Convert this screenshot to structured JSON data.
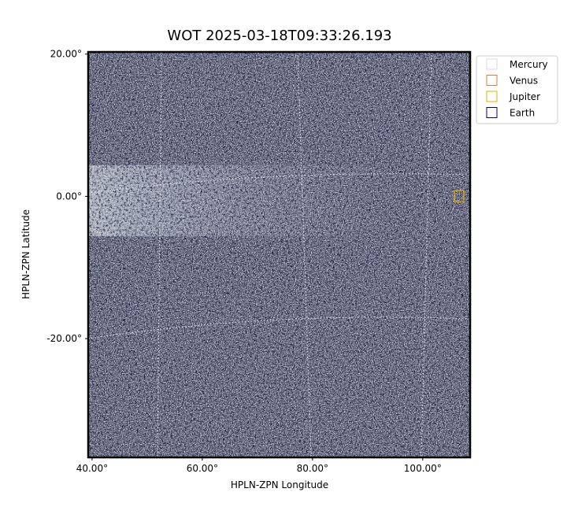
{
  "chart_data": {
    "type": "image",
    "title": "WOT 2025-03-18T09:33:26.193",
    "x_label": "HPLN-ZPN Longitude",
    "y_label": "HPLN-ZPN Latitude",
    "xlim": [
      39.3,
      108.6
    ],
    "ylim": [
      -36.7,
      20.3
    ],
    "xticks": [
      {
        "value": 40,
        "label": "40.00°"
      },
      {
        "value": 60,
        "label": "60.00°"
      },
      {
        "value": 80,
        "label": "80.00°"
      },
      {
        "value": 100,
        "label": "100.00°"
      }
    ],
    "yticks": [
      {
        "value": 20,
        "label": "20.00°"
      },
      {
        "value": 0,
        "label": "0.00°"
      },
      {
        "value": -20,
        "label": "-20.00°"
      }
    ],
    "series": [
      {
        "name": "Mercury",
        "color": "#d9d9d9",
        "x": [],
        "y": []
      },
      {
        "name": "Venus",
        "color": "#e07b39",
        "x": [
          106.6
        ],
        "y": [
          0.0
        ]
      },
      {
        "name": "Jupiter",
        "color": "#e0b000",
        "x": [
          106.6
        ],
        "y": [
          0.0
        ]
      },
      {
        "name": "Earth",
        "color": "#000080",
        "x": [],
        "y": []
      }
    ]
  }
}
